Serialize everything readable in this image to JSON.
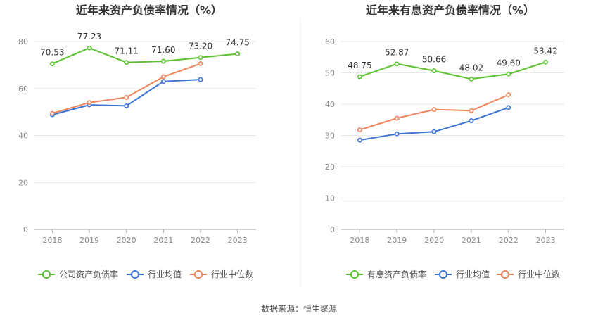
{
  "chart_data": [
    {
      "type": "line",
      "title": "近年来资产负债率情况（%）",
      "categories": [
        "2018",
        "2019",
        "2020",
        "2021",
        "2022",
        "2023"
      ],
      "ylim": [
        0,
        80
      ],
      "yticks": [
        "0",
        "20",
        "40",
        "60",
        "80"
      ],
      "grid": true,
      "legend_position": "bottom",
      "series": [
        {
          "name": "公司资产负债率",
          "color": "#5ac12e",
          "values": [
            70.53,
            77.23,
            71.11,
            71.6,
            73.2,
            74.75
          ],
          "labels": [
            "70.53",
            "77.23",
            "71.11",
            "71.60",
            "73.20",
            "74.75"
          ]
        },
        {
          "name": "行业均值",
          "color": "#3c73d6",
          "values": [
            48.8,
            53.0,
            52.6,
            63.0,
            63.8,
            null
          ]
        },
        {
          "name": "行业中位数",
          "color": "#f0845c",
          "values": [
            49.4,
            54.0,
            56.2,
            65.0,
            70.6,
            null
          ]
        }
      ]
    },
    {
      "type": "line",
      "title": "近年来有息资产负债率情况（%）",
      "categories": [
        "2018",
        "2019",
        "2020",
        "2021",
        "2022",
        "2023"
      ],
      "ylim": [
        0,
        60
      ],
      "yticks": [
        "0",
        "10",
        "20",
        "30",
        "40",
        "50",
        "60"
      ],
      "grid": true,
      "legend_position": "bottom",
      "series": [
        {
          "name": "有息资产负债率",
          "color": "#5ac12e",
          "values": [
            48.75,
            52.87,
            50.66,
            48.02,
            49.6,
            53.42
          ],
          "labels": [
            "48.75",
            "52.87",
            "50.66",
            "48.02",
            "49.60",
            "53.42"
          ]
        },
        {
          "name": "行业均值",
          "color": "#3c73d6",
          "values": [
            28.5,
            30.5,
            31.2,
            34.7,
            38.9,
            null
          ]
        },
        {
          "name": "行业中位数",
          "color": "#f0845c",
          "values": [
            31.8,
            35.5,
            38.3,
            37.9,
            43.0,
            null
          ]
        }
      ]
    }
  ],
  "source": "数据来源：恒生聚源"
}
